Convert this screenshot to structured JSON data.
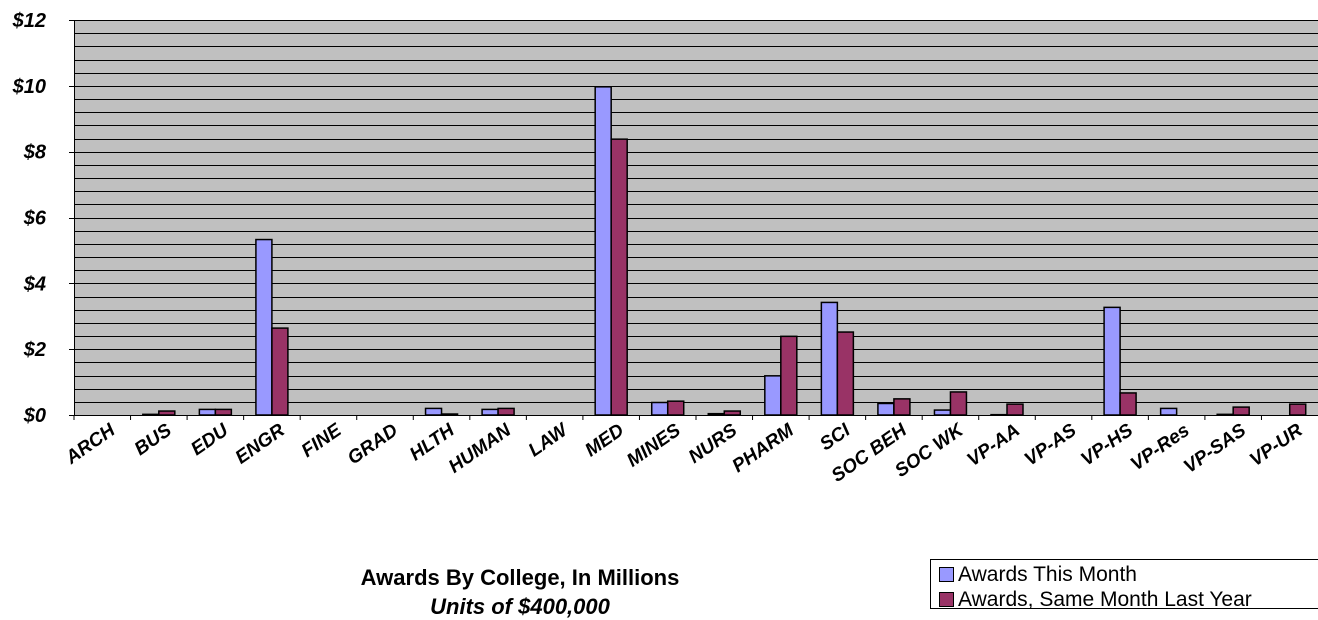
{
  "chart_data": {
    "type": "bar",
    "title": "Awards By College, In Millions",
    "subtitle": "Units of $400,000",
    "categories": [
      "ARCH",
      "BUS",
      "EDU",
      "ENGR",
      "FINE",
      "GRAD",
      "HLTH",
      "HUMAN",
      "LAW",
      "MED",
      "MINES",
      "NURS",
      "PHARM",
      "SCI",
      "SOC BEH",
      "SOC WK",
      "VP-AA",
      "VP-AS",
      "VP-HS",
      "VP-Res",
      "VP-SAS",
      "VP-UR"
    ],
    "series": [
      {
        "name": "Awards This Month",
        "color": "#9999ff",
        "values": [
          0,
          0.02,
          0.17,
          5.33,
          0,
          0,
          0.2,
          0.17,
          0,
          9.97,
          0.38,
          0.04,
          1.19,
          3.42,
          0.35,
          0.15,
          0.01,
          0,
          3.27,
          0.2,
          0.02,
          0
        ]
      },
      {
        "name": "Awards, Same Month Last Year",
        "color": "#993366",
        "values": [
          0,
          0.12,
          0.17,
          2.64,
          0,
          0,
          0.03,
          0.2,
          0,
          8.38,
          0.42,
          0.12,
          2.39,
          2.52,
          0.49,
          0.7,
          0.33,
          0,
          0.67,
          0,
          0.24,
          0.33
        ]
      }
    ],
    "yticks": [
      "$0",
      "$2",
      "$4",
      "$6",
      "$8",
      "$10",
      "$12"
    ],
    "ylim": [
      0,
      12
    ],
    "ymajor": 2,
    "yminor": 0.4,
    "grid": true,
    "plot_background": "#c0c0c0",
    "legend_position": "bottom-right"
  },
  "legend": {
    "items": [
      "Awards This Month",
      "Awards, Same Month Last Year"
    ]
  }
}
